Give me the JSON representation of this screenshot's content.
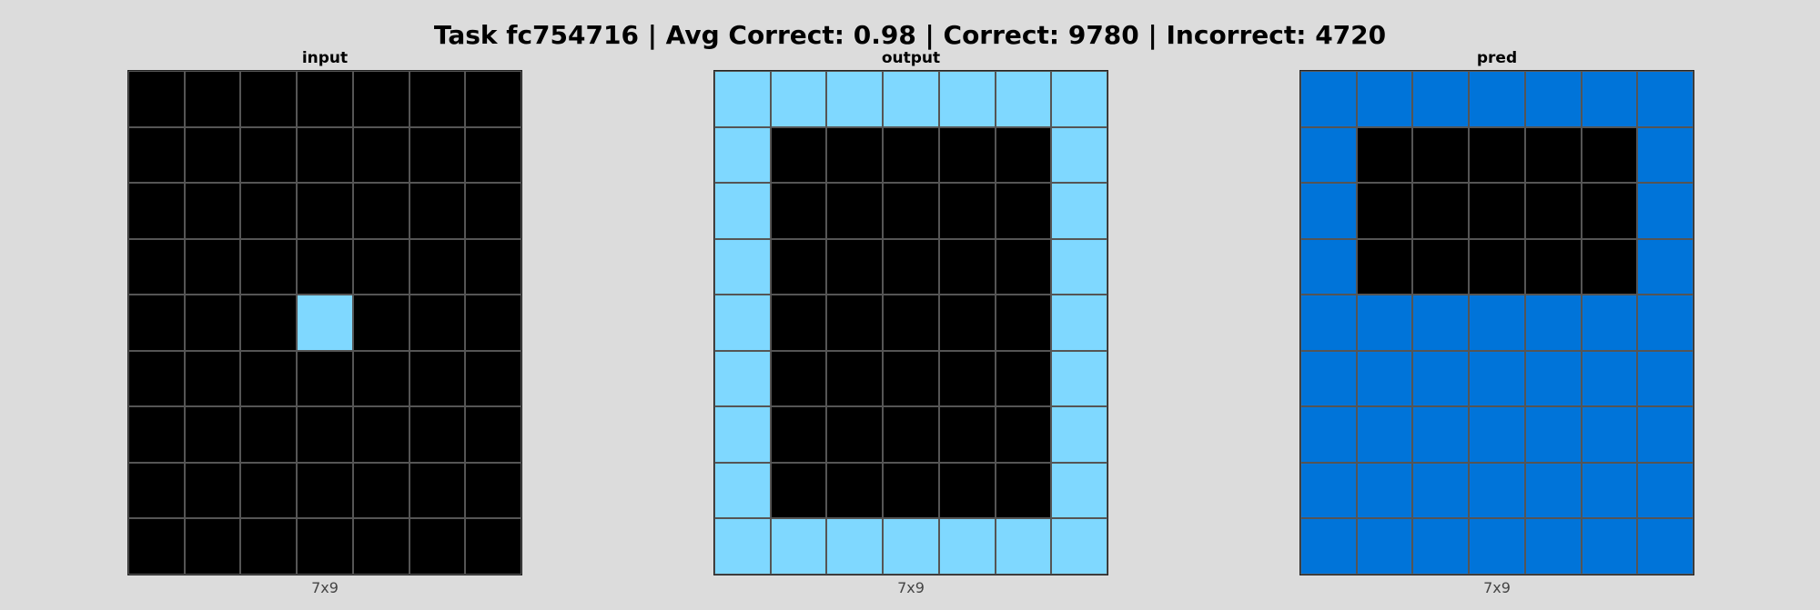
{
  "title": "Task fc754716 | Avg Correct: 0.98 | Correct: 9780 | Incorrect: 4720",
  "palette": {
    "0": "#000000",
    "8": "#7fd8ff",
    "1": "#0074d9"
  },
  "panels": [
    {
      "id": "input",
      "title": "input",
      "dims": "7x9",
      "grid": [
        [
          0,
          0,
          0,
          0,
          0,
          0,
          0
        ],
        [
          0,
          0,
          0,
          0,
          0,
          0,
          0
        ],
        [
          0,
          0,
          0,
          0,
          0,
          0,
          0
        ],
        [
          0,
          0,
          0,
          0,
          0,
          0,
          0
        ],
        [
          0,
          0,
          0,
          8,
          0,
          0,
          0
        ],
        [
          0,
          0,
          0,
          0,
          0,
          0,
          0
        ],
        [
          0,
          0,
          0,
          0,
          0,
          0,
          0
        ],
        [
          0,
          0,
          0,
          0,
          0,
          0,
          0
        ],
        [
          0,
          0,
          0,
          0,
          0,
          0,
          0
        ]
      ]
    },
    {
      "id": "output",
      "title": "output",
      "dims": "7x9",
      "grid": [
        [
          8,
          8,
          8,
          8,
          8,
          8,
          8
        ],
        [
          8,
          0,
          0,
          0,
          0,
          0,
          8
        ],
        [
          8,
          0,
          0,
          0,
          0,
          0,
          8
        ],
        [
          8,
          0,
          0,
          0,
          0,
          0,
          8
        ],
        [
          8,
          0,
          0,
          0,
          0,
          0,
          8
        ],
        [
          8,
          0,
          0,
          0,
          0,
          0,
          8
        ],
        [
          8,
          0,
          0,
          0,
          0,
          0,
          8
        ],
        [
          8,
          0,
          0,
          0,
          0,
          0,
          8
        ],
        [
          8,
          8,
          8,
          8,
          8,
          8,
          8
        ]
      ]
    },
    {
      "id": "pred",
      "title": "pred",
      "dims": "7x9",
      "grid": [
        [
          1,
          1,
          1,
          1,
          1,
          1,
          1
        ],
        [
          1,
          0,
          0,
          0,
          0,
          0,
          1
        ],
        [
          1,
          0,
          0,
          0,
          0,
          0,
          1
        ],
        [
          1,
          0,
          0,
          0,
          0,
          0,
          1
        ],
        [
          1,
          1,
          1,
          1,
          1,
          1,
          1
        ],
        [
          1,
          1,
          1,
          1,
          1,
          1,
          1
        ],
        [
          1,
          1,
          1,
          1,
          1,
          1,
          1
        ],
        [
          1,
          1,
          1,
          1,
          1,
          1,
          1
        ],
        [
          1,
          1,
          1,
          1,
          1,
          1,
          1
        ]
      ]
    }
  ]
}
